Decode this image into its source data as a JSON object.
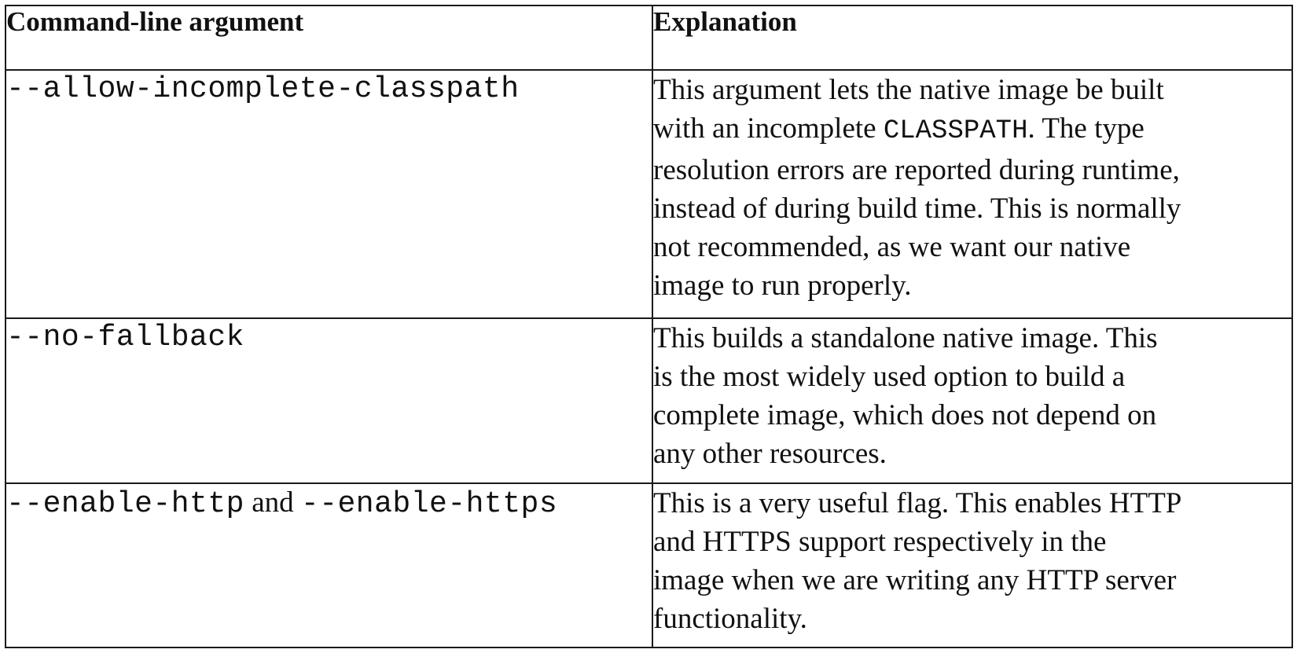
{
  "table": {
    "headers": {
      "argument": "Command-line argument",
      "explanation": "Explanation"
    },
    "rows": [
      {
        "argument": "--allow-incomplete-classpath",
        "explanation": {
          "l1": "This argument lets the native image be built",
          "l2a": "with an incomplete ",
          "l2code": "CLASSPATH",
          "l2b": ". The type",
          "l3": "resolution errors are reported during runtime,",
          "l4": "instead of during build time. This is normally",
          "l5": "not recommended, as we want our native",
          "l6": "image to run properly."
        }
      },
      {
        "argument": "--no-fallback",
        "explanation": {
          "l1": "This builds a standalone native image. This",
          "l2": "is the most widely used option to build a",
          "l3": "complete image, which does not depend on",
          "l4": "any other resources."
        }
      },
      {
        "argument_a": "--enable-http",
        "argument_joiner": " and ",
        "argument_b": "--enable-https",
        "explanation": {
          "l1": "This is a very useful flag. This enables HTTP",
          "l2": "and HTTPS support respectively in the",
          "l3": "image when we are writing any HTTP server",
          "l4": "functionality."
        }
      }
    ]
  }
}
